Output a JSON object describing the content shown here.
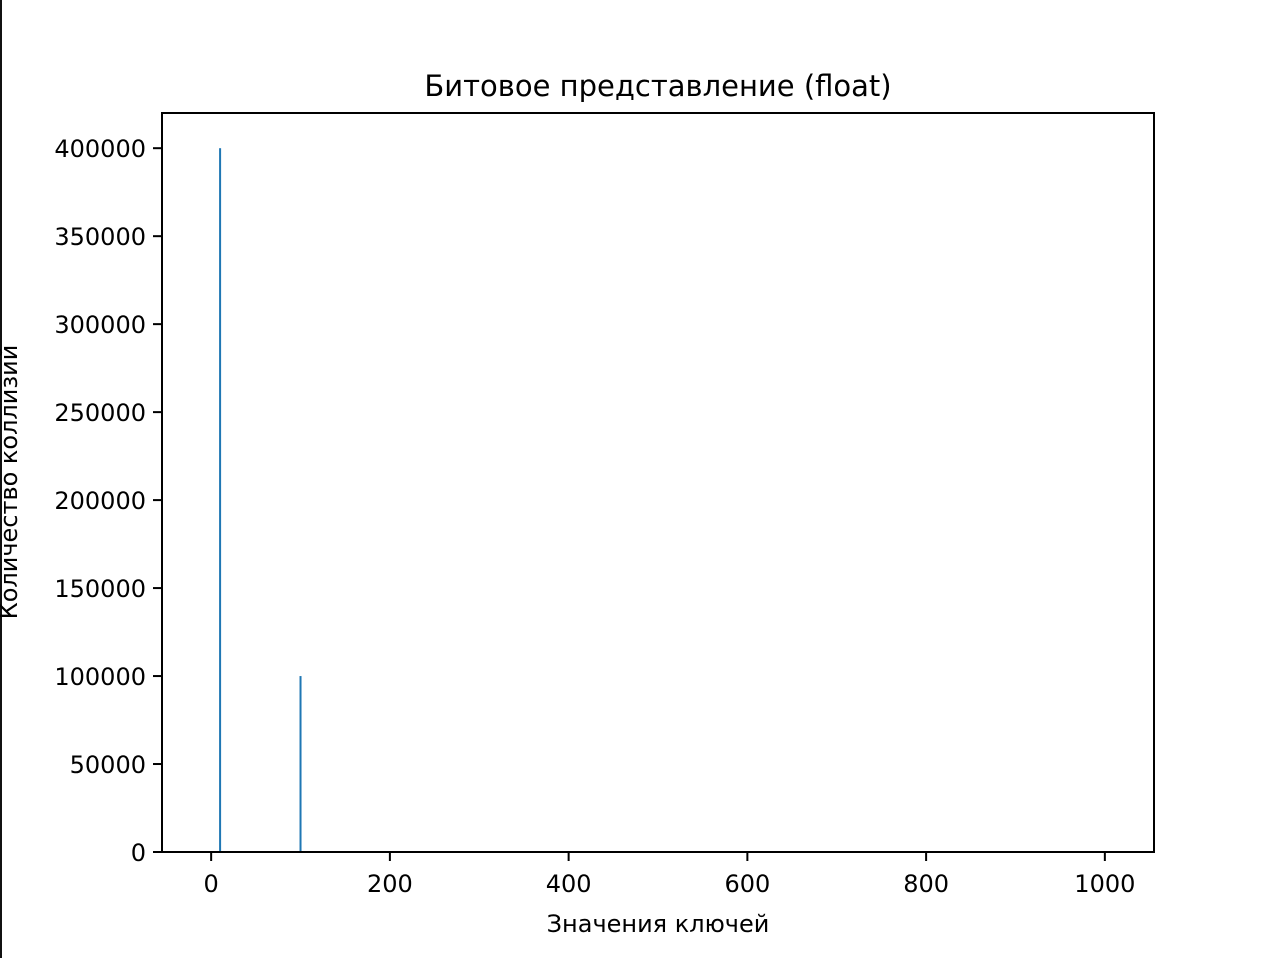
{
  "chart_data": {
    "type": "bar",
    "title": "Битовое представление (float)",
    "xlabel": "Значения ключей",
    "ylabel": "Количество коллизий",
    "xlim": [
      -55,
      1055
    ],
    "ylim": [
      0,
      420000
    ],
    "x_ticks": [
      0,
      200,
      400,
      600,
      800,
      1000
    ],
    "y_ticks": [
      0,
      50000,
      100000,
      150000,
      200000,
      250000,
      300000,
      350000,
      400000
    ],
    "series": [
      {
        "color": "#1f77b4",
        "points": [
          {
            "x": 10,
            "y": 400000
          },
          {
            "x": 100,
            "y": 100000
          }
        ]
      }
    ],
    "grid": false,
    "legend": "none"
  }
}
